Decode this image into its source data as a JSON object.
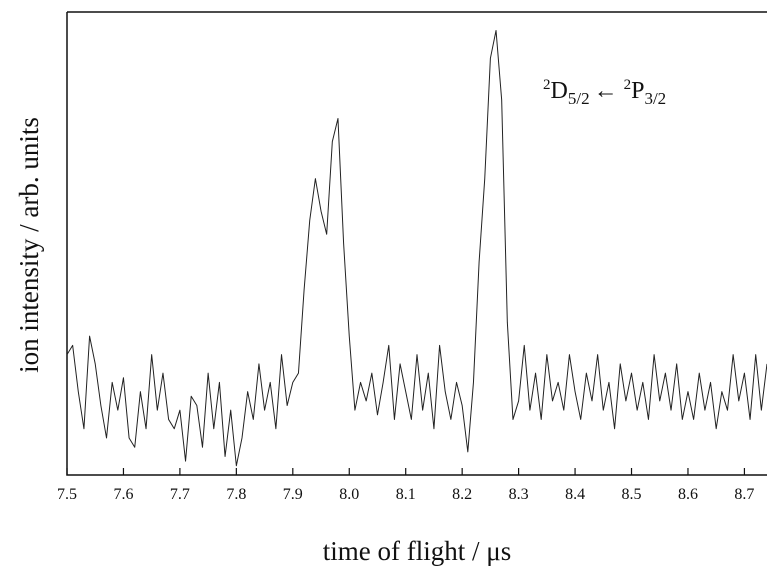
{
  "chart_data": {
    "type": "line",
    "xlabel": "time of flight / μs",
    "ylabel": "ion intensity / arb. units",
    "annotation": [
      "2",
      "D",
      "5/2",
      "←",
      "2",
      "P",
      "3/2"
    ],
    "color": "#222222",
    "xlim": [
      7.5,
      8.74
    ],
    "xticks": [
      {
        "value": 7.5,
        "label": "7.5"
      },
      {
        "value": 7.6,
        "label": "7.6"
      },
      {
        "value": 7.7,
        "label": "7.7"
      },
      {
        "value": 7.8,
        "label": "7.8"
      },
      {
        "value": 7.9,
        "label": "7.9"
      },
      {
        "value": 8.0,
        "label": "8.0"
      },
      {
        "value": 8.1,
        "label": "8.1"
      },
      {
        "value": 8.2,
        "label": "8.2"
      },
      {
        "value": 8.3,
        "label": "8.3"
      },
      {
        "value": 8.4,
        "label": "8.4"
      },
      {
        "value": 8.5,
        "label": "8.5"
      },
      {
        "value": 8.6,
        "label": "8.6"
      },
      {
        "value": 8.7,
        "label": "8.7"
      }
    ],
    "ylim": [
      0,
      100
    ],
    "yticks": [],
    "x": [
      7.5,
      7.51,
      7.52,
      7.53,
      7.54,
      7.55,
      7.56,
      7.57,
      7.58,
      7.59,
      7.6,
      7.61,
      7.62,
      7.63,
      7.64,
      7.65,
      7.66,
      7.67,
      7.68,
      7.69,
      7.7,
      7.71,
      7.72,
      7.73,
      7.74,
      7.75,
      7.76,
      7.77,
      7.78,
      7.79,
      7.8,
      7.81,
      7.82,
      7.83,
      7.84,
      7.85,
      7.86,
      7.87,
      7.88,
      7.89,
      7.9,
      7.91,
      7.92,
      7.93,
      7.94,
      7.95,
      7.96,
      7.97,
      7.98,
      7.99,
      8.0,
      8.01,
      8.02,
      8.03,
      8.04,
      8.05,
      8.06,
      8.07,
      8.08,
      8.09,
      8.1,
      8.11,
      8.12,
      8.13,
      8.14,
      8.15,
      8.16,
      8.17,
      8.18,
      8.19,
      8.2,
      8.21,
      8.22,
      8.23,
      8.24,
      8.25,
      8.26,
      8.27,
      8.28,
      8.29,
      8.3,
      8.31,
      8.32,
      8.33,
      8.34,
      8.35,
      8.36,
      8.37,
      8.38,
      8.39,
      8.4,
      8.41,
      8.42,
      8.43,
      8.44,
      8.45,
      8.46,
      8.47,
      8.48,
      8.49,
      8.5,
      8.51,
      8.52,
      8.53,
      8.54,
      8.55,
      8.56,
      8.57,
      8.58,
      8.59,
      8.6,
      8.61,
      8.62,
      8.63,
      8.64,
      8.65,
      8.66,
      8.67,
      8.68,
      8.69,
      8.7,
      8.71,
      8.72,
      8.73,
      8.74
    ],
    "values": [
      26,
      28,
      18,
      10,
      30,
      24,
      15,
      8,
      20,
      14,
      21,
      8,
      6,
      18,
      10,
      26,
      14,
      22,
      12,
      10,
      14,
      3,
      17,
      15,
      6,
      22,
      10,
      20,
      4,
      14,
      2,
      8,
      18,
      12,
      24,
      14,
      20,
      10,
      26,
      15,
      20,
      22,
      40,
      55,
      64,
      57,
      52,
      72,
      77,
      50,
      30,
      14,
      20,
      16,
      22,
      13,
      20,
      28,
      12,
      24,
      18,
      12,
      26,
      14,
      22,
      10,
      28,
      18,
      12,
      20,
      15,
      5,
      20,
      46,
      64,
      90,
      96,
      81,
      33,
      12,
      16,
      28,
      14,
      22,
      12,
      26,
      16,
      20,
      14,
      26,
      18,
      12,
      22,
      16,
      26,
      14,
      20,
      10,
      24,
      16,
      22,
      14,
      20,
      12,
      26,
      16,
      22,
      14,
      24,
      12,
      18,
      12,
      22,
      14,
      20,
      10,
      18,
      14,
      26,
      16,
      22,
      12,
      26,
      14,
      24
    ]
  }
}
